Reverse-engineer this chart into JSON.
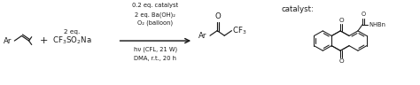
{
  "background_color": "#ffffff",
  "fig_width": 4.74,
  "fig_height": 0.96,
  "dpi": 100,
  "font_size": 6.2,
  "small_font": 5.2,
  "text_color": "#1a1a1a",
  "line_color": "#1a1a1a",
  "line_width": 0.85,
  "thin_lw": 0.75,
  "reactant1_label": "Ar",
  "reactant2_lines": [
    "2 eq.",
    "CF₃SO₂Na"
  ],
  "arrow_conditions_above": [
    "0.2 eq. catalyst",
    "2 eq. Ba(OH)₂",
    "O₂ (balloon)"
  ],
  "arrow_conditions_below": [
    "hν (CFL, 21 W)",
    "DMA, r.t., 20 h"
  ],
  "product_label": "Ar",
  "catalyst_label": "catalyst:",
  "catalyst_amide": "NHBn"
}
